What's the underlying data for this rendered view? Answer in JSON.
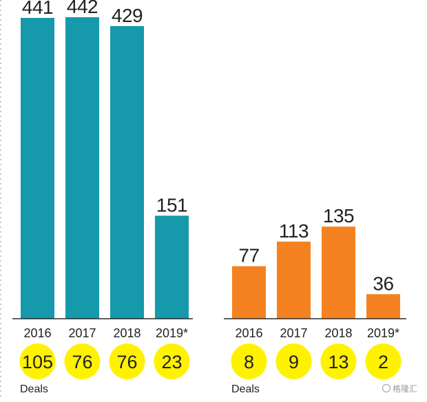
{
  "colors": {
    "left_bar": "#1599ab",
    "right_bar": "#f58220",
    "deal_circle": "#fff200",
    "text": "#222222",
    "axis": "#2a2a2a"
  },
  "chart_data": [
    {
      "type": "bar",
      "categories": [
        "2016",
        "2017",
        "2018",
        "2019*"
      ],
      "values": [
        441,
        442,
        429,
        151
      ],
      "value_labels": [
        "441",
        "442",
        "429",
        "151"
      ],
      "deals": [
        "105",
        "76",
        "76",
        "23"
      ],
      "deals_label": "Deals",
      "ylim": [
        0,
        442
      ],
      "bar_color_key": "left_bar"
    },
    {
      "type": "bar",
      "categories": [
        "2016",
        "2017",
        "2018",
        "2019*"
      ],
      "values": [
        77,
        113,
        135,
        36
      ],
      "value_labels": [
        "77",
        "113",
        "135",
        "36"
      ],
      "deals": [
        "8",
        "9",
        "13",
        "2"
      ],
      "deals_label": "Deals",
      "ylim": [
        0,
        442
      ],
      "bar_color_key": "right_bar"
    }
  ],
  "watermark": "格隆汇"
}
